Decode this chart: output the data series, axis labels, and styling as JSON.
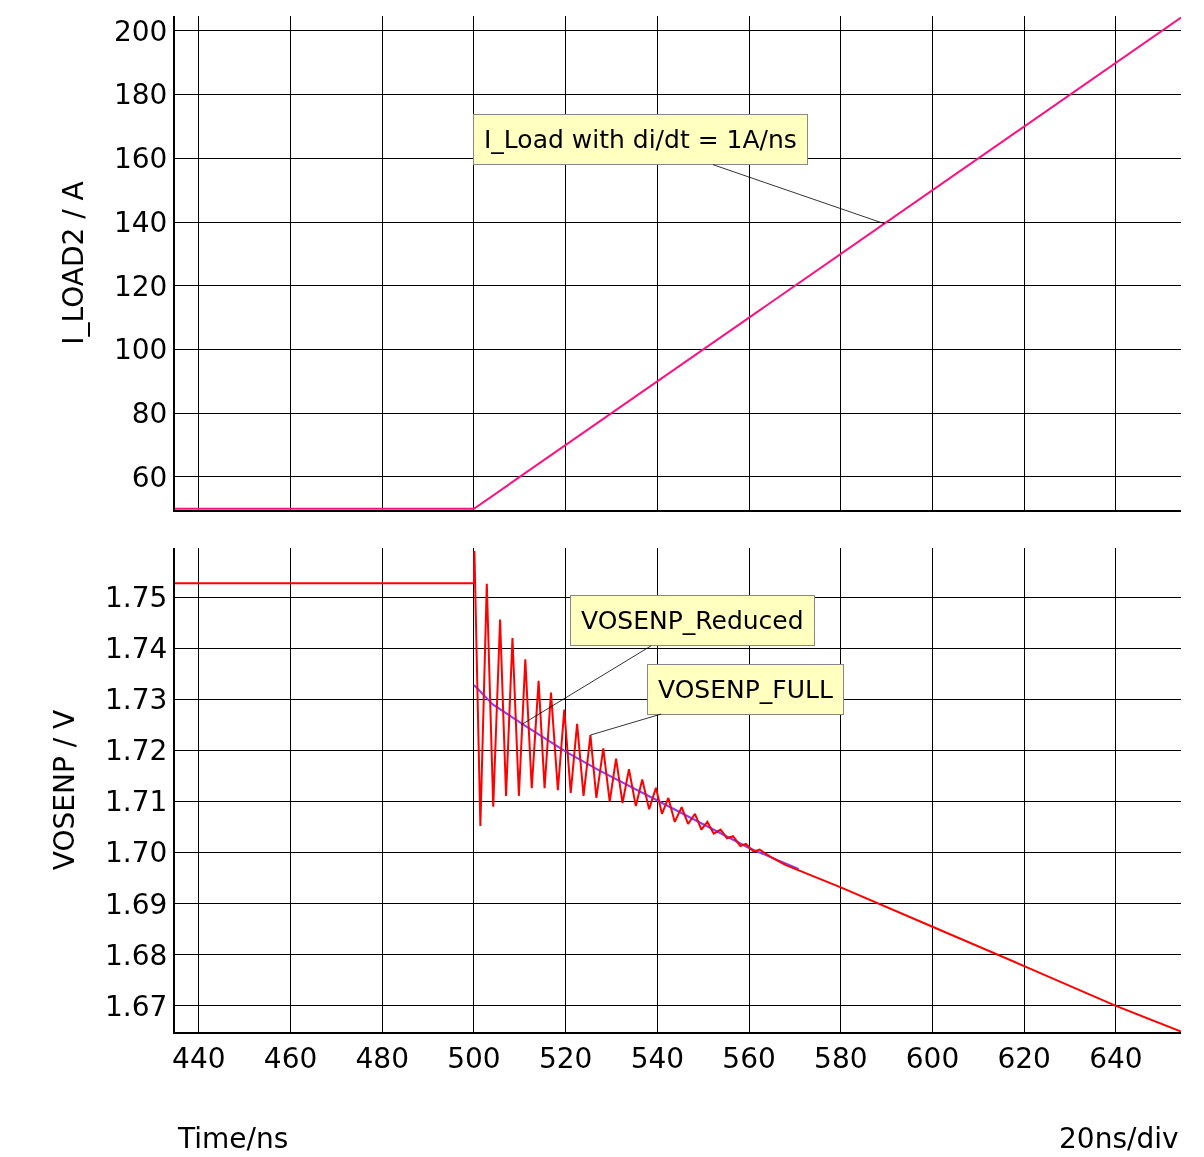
{
  "chart_data": [
    {
      "type": "line",
      "ylabel": "I_LOAD2 / A",
      "x": [
        434.8,
        500,
        654.2
      ],
      "series": [
        {
          "color": "#ff1080",
          "values": [
            50,
            50,
            204.2
          ]
        }
      ],
      "xlim": [
        434.8,
        654.2
      ],
      "ylim": [
        49.6,
        204.7
      ],
      "xticks": [
        440,
        460,
        480,
        500,
        520,
        540,
        560,
        580,
        600,
        620,
        640
      ],
      "yticks": [
        60,
        80,
        100,
        120,
        140,
        160,
        180,
        200
      ],
      "grid": true,
      "tick_labels": "y",
      "annotations": [
        {
          "text": "I_Load with di/dt = 1A/ns",
          "x": 589.5,
          "y": 139.5
        }
      ]
    },
    {
      "type": "line",
      "xlabel": "Time/ns",
      "ylabel": "VOSENP / V",
      "series": [
        {
          "color": "#8040ff",
          "x": [
            500,
            504.1,
            510.7,
            520.1,
            527.3,
            540.2,
            560,
            570.8
          ],
          "values": [
            1.7328,
            1.729,
            1.7251,
            1.7197,
            1.7161,
            1.7101,
            1.7009,
            1.6968
          ]
        },
        {
          "color": "#ff0000",
          "x": [
            434.8,
            500,
            500.1,
            501.4,
            502.8,
            504.2,
            505.7,
            507,
            508.4,
            509.8,
            511.2,
            512.6,
            514.1,
            515.4,
            516.8,
            518.3,
            519.7,
            521.1,
            522.5,
            523.9,
            525.4,
            526.7,
            528.2,
            529.6,
            531,
            532.4,
            533.8,
            535.3,
            536.7,
            538.2,
            539.7,
            541,
            542.4,
            543.8,
            545.3,
            546.7,
            548.2,
            549.6,
            550.9,
            552.3,
            553.8,
            555.2,
            556.5,
            558.1,
            559.3,
            561,
            562.3,
            565,
            567.9,
            580,
            600,
            620,
            640,
            654.2
          ],
          "values": [
            1.7527,
            1.7527,
            1.759,
            1.7052,
            1.7526,
            1.709,
            1.7456,
            1.7111,
            1.742,
            1.7111,
            1.7378,
            1.7126,
            1.7336,
            1.7126,
            1.7313,
            1.7122,
            1.728,
            1.7117,
            1.7252,
            1.7111,
            1.723,
            1.7107,
            1.7204,
            1.71,
            1.7184,
            1.7097,
            1.7163,
            1.7091,
            1.7143,
            1.7085,
            1.7127,
            1.7076,
            1.7107,
            1.706,
            1.7089,
            1.7056,
            1.7076,
            1.7045,
            1.706,
            1.7037,
            1.7045,
            1.7028,
            1.7032,
            1.7013,
            1.7017,
            1.7002,
            1.7006,
            1.699,
            1.6976,
            1.6932,
            1.6855,
            1.6778,
            1.67,
            1.665
          ]
        }
      ],
      "xlim": [
        434.8,
        654.2
      ],
      "ylim": [
        1.6649,
        1.7596
      ],
      "xticks": [
        440,
        460,
        480,
        500,
        520,
        540,
        560,
        580,
        600,
        620,
        640
      ],
      "yticks": [
        1.67,
        1.68,
        1.69,
        {
          "value": 1.7,
          "label": "1.70"
        },
        1.71,
        1.72,
        1.73,
        1.74,
        1.75
      ],
      "grid": true,
      "annotations": [
        {
          "text": "VOSENP_Reduced",
          "x": 510.3,
          "y": 1.725
        },
        {
          "text": "VOSENP_FULL",
          "x": 525.4,
          "y": 1.723
        },
        "20ns/div"
      ]
    }
  ]
}
